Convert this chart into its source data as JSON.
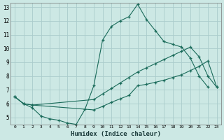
{
  "xlabel": "Humidex (Indice chaleur)",
  "bg_color": "#cce8e4",
  "grid_color": "#aacccc",
  "line_color": "#1a6b5a",
  "xlim": [
    -0.5,
    23.5
  ],
  "ylim": [
    4.5,
    13.3
  ],
  "yticks": [
    5,
    6,
    7,
    8,
    9,
    10,
    11,
    12,
    13
  ],
  "xticks": [
    0,
    1,
    2,
    3,
    4,
    5,
    6,
    7,
    8,
    9,
    10,
    11,
    12,
    13,
    14,
    15,
    16,
    17,
    18,
    19,
    20,
    21,
    22,
    23
  ],
  "series1_x": [
    0,
    1,
    2,
    3,
    4,
    5,
    6,
    7,
    8,
    9,
    10,
    11,
    12,
    13,
    14,
    15,
    16,
    17,
    18,
    19,
    20,
    21,
    22
  ],
  "series1_y": [
    6.5,
    6.0,
    5.7,
    5.1,
    4.9,
    4.8,
    4.6,
    4.5,
    5.6,
    7.3,
    10.6,
    11.6,
    12.0,
    12.3,
    13.2,
    12.1,
    11.3,
    10.5,
    10.3,
    10.1,
    9.3,
    8.0,
    7.2
  ],
  "series2_x": [
    0,
    1,
    2,
    9,
    10,
    11,
    12,
    13,
    14,
    15,
    16,
    17,
    18,
    19,
    20,
    21,
    22,
    23
  ],
  "series2_y": [
    6.5,
    6.0,
    5.9,
    5.55,
    5.8,
    6.1,
    6.35,
    6.6,
    7.3,
    7.4,
    7.55,
    7.7,
    7.9,
    8.1,
    8.4,
    8.7,
    9.1,
    7.2
  ],
  "series3_x": [
    0,
    1,
    2,
    9,
    10,
    11,
    12,
    13,
    14,
    15,
    16,
    17,
    18,
    19,
    20,
    21,
    22,
    23
  ],
  "series3_y": [
    6.5,
    6.0,
    5.9,
    6.3,
    6.7,
    7.1,
    7.5,
    7.9,
    8.3,
    8.6,
    8.9,
    9.2,
    9.5,
    9.8,
    10.1,
    9.4,
    8.0,
    7.2
  ]
}
